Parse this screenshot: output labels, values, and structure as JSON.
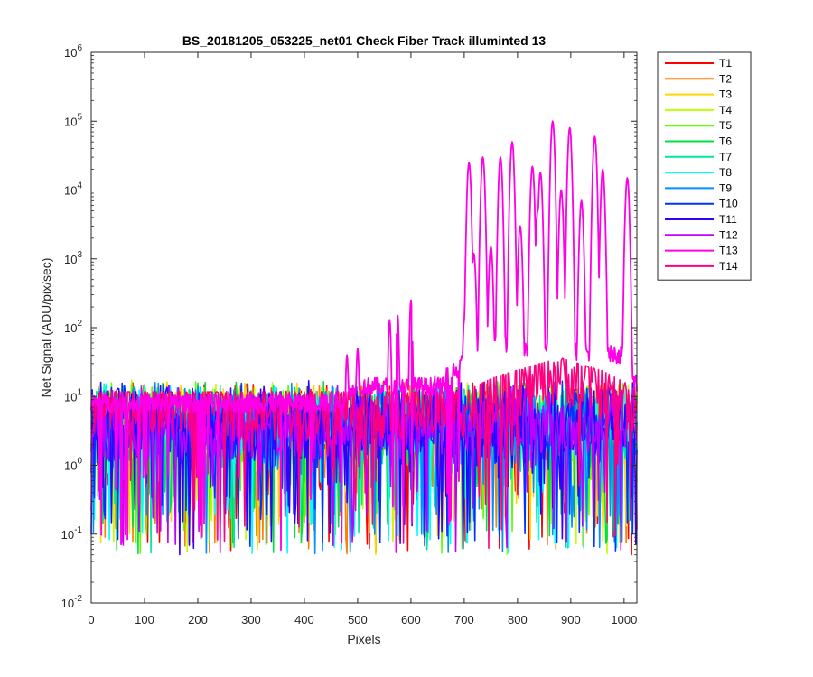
{
  "chart_data": {
    "type": "line",
    "title": "BS_20181205_053225_net01   Check Fiber     Track illuminted 13",
    "xlabel": "Pixels",
    "ylabel": "Net Signal (ADU/pix/sec)",
    "xlim": [
      0,
      1024
    ],
    "ylim": [
      0.01,
      1000000
    ],
    "yscale": "log",
    "x_ticks": [
      0,
      100,
      200,
      300,
      400,
      500,
      600,
      700,
      800,
      900,
      1000
    ],
    "y_ticks": [
      {
        "value": 0.01,
        "base": "10",
        "exp": "-2"
      },
      {
        "value": 0.1,
        "base": "10",
        "exp": "-1"
      },
      {
        "value": 1,
        "base": "10",
        "exp": "0"
      },
      {
        "value": 10,
        "base": "10",
        "exp": "1"
      },
      {
        "value": 100,
        "base": "10",
        "exp": "2"
      },
      {
        "value": 1000,
        "base": "10",
        "exp": "3"
      },
      {
        "value": 10000,
        "base": "10",
        "exp": "4"
      },
      {
        "value": 100000,
        "base": "10",
        "exp": "5"
      },
      {
        "value": 1000000,
        "base": "10",
        "exp": "6"
      }
    ],
    "grid": false,
    "legend_position": "outside-top-right",
    "noise_floor": {
      "min": 0.05,
      "typical": 8,
      "max": 25
    },
    "series": [
      {
        "name": "T1",
        "color": "#ff0000"
      },
      {
        "name": "T2",
        "color": "#ff7f00"
      },
      {
        "name": "T3",
        "color": "#ffd700"
      },
      {
        "name": "T4",
        "color": "#bfff00"
      },
      {
        "name": "T5",
        "color": "#5fff00"
      },
      {
        "name": "T6",
        "color": "#00e040"
      },
      {
        "name": "T7",
        "color": "#00e6a0"
      },
      {
        "name": "T8",
        "color": "#00ffff"
      },
      {
        "name": "T9",
        "color": "#0090ff"
      },
      {
        "name": "T10",
        "color": "#0033ff"
      },
      {
        "name": "T11",
        "color": "#3300ff"
      },
      {
        "name": "T12",
        "color": "#bf00ff"
      },
      {
        "name": "T13",
        "color": "#ff00e6"
      },
      {
        "name": "T14",
        "color": "#ff0080"
      }
    ],
    "illuminated_track": {
      "name": "T13",
      "baseline": [
        [
          0,
          8
        ],
        [
          470,
          8
        ],
        [
          480,
          10
        ],
        [
          500,
          14
        ],
        [
          660,
          14
        ],
        [
          690,
          25
        ],
        [
          700,
          60
        ],
        [
          1000,
          40
        ],
        [
          1024,
          15
        ]
      ],
      "peaks": [
        {
          "x": 480,
          "y": 40
        },
        {
          "x": 500,
          "y": 50
        },
        {
          "x": 560,
          "y": 130
        },
        {
          "x": 575,
          "y": 150
        },
        {
          "x": 600,
          "y": 250
        },
        {
          "x": 645,
          "y": 20
        },
        {
          "x": 668,
          "y": 30
        },
        {
          "x": 680,
          "y": 30
        },
        {
          "x": 700,
          "y": 130
        },
        {
          "x": 709,
          "y": 25000
        },
        {
          "x": 718,
          "y": 1200
        },
        {
          "x": 735,
          "y": 30000
        },
        {
          "x": 750,
          "y": 1500
        },
        {
          "x": 768,
          "y": 30000
        },
        {
          "x": 790,
          "y": 50000
        },
        {
          "x": 805,
          "y": 3000
        },
        {
          "x": 828,
          "y": 22000
        },
        {
          "x": 838,
          "y": 5000
        },
        {
          "x": 843,
          "y": 18000
        },
        {
          "x": 866,
          "y": 100000
        },
        {
          "x": 882,
          "y": 10000
        },
        {
          "x": 898,
          "y": 80000
        },
        {
          "x": 920,
          "y": 7000
        },
        {
          "x": 945,
          "y": 60000
        },
        {
          "x": 960,
          "y": 20000
        },
        {
          "x": 1006,
          "y": 15000
        }
      ]
    },
    "wide_track": {
      "name": "T14",
      "baseline": [
        [
          0,
          9
        ],
        [
          700,
          9
        ],
        [
          760,
          15
        ],
        [
          880,
          28
        ],
        [
          960,
          18
        ],
        [
          1024,
          10
        ]
      ]
    }
  }
}
